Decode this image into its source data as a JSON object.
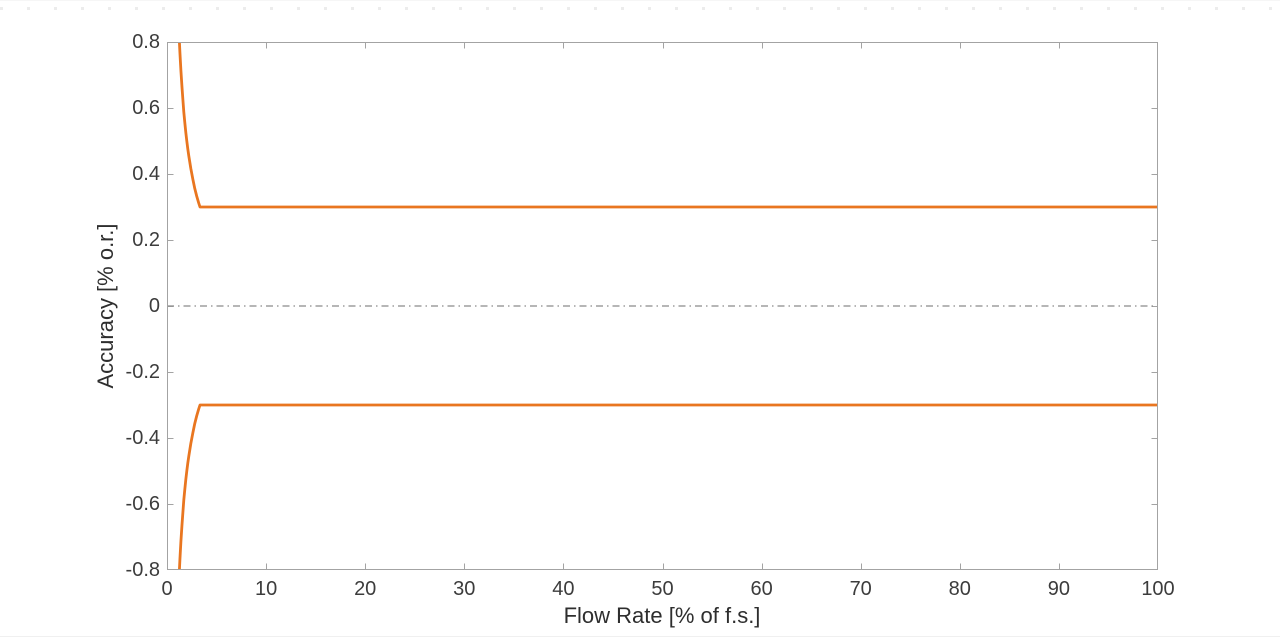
{
  "page": {
    "background_color": "#ffffff"
  },
  "chart_data": {
    "type": "line",
    "title": "",
    "xlabel": "Flow Rate [% of f.s.]",
    "ylabel": "Accuracy [% o.r.]",
    "xlim": [
      0,
      100
    ],
    "ylim": [
      -0.8,
      0.8
    ],
    "x_ticks": [
      0,
      10,
      20,
      30,
      40,
      50,
      60,
      70,
      80,
      90,
      100
    ],
    "x_tick_labels": [
      "0",
      "10",
      "20",
      "30",
      "40",
      "50",
      "60",
      "70",
      "80",
      "90",
      "100"
    ],
    "y_ticks": [
      0.8,
      0.6,
      0.4,
      0.2,
      0,
      -0.2,
      -0.4,
      -0.6,
      -0.8
    ],
    "y_tick_labels": [
      "0.8",
      "0.6",
      "0.4",
      "0.2",
      "0",
      "-0.2",
      "-0.4",
      "-0.6",
      "-0.8"
    ],
    "grid": false,
    "box": true,
    "tick_direction": "in",
    "legend": null,
    "colors": {
      "axis": "#a3a3a3",
      "tick_text": "#3c3c3c",
      "label_text": "#2e2e2e",
      "accuracy_band": "#e97620",
      "zero_line": "#8a8a8a"
    },
    "series": [
      {
        "name": "upper accuracy limit",
        "color": "#e97620",
        "width": 2.8,
        "style": "solid",
        "points": [
          [
            1,
            1.0
          ],
          [
            1.05,
            0.952
          ],
          [
            1.1,
            0.909
          ],
          [
            1.15,
            0.87
          ],
          [
            1.2,
            0.833
          ],
          [
            1.25,
            0.8
          ],
          [
            1.3,
            0.769
          ],
          [
            1.35,
            0.741
          ],
          [
            1.4,
            0.714
          ],
          [
            1.5,
            0.667
          ],
          [
            1.6,
            0.625
          ],
          [
            1.7,
            0.588
          ],
          [
            1.8,
            0.556
          ],
          [
            1.9,
            0.526
          ],
          [
            2,
            0.5
          ],
          [
            2.1,
            0.476
          ],
          [
            2.2,
            0.455
          ],
          [
            2.4,
            0.417
          ],
          [
            2.6,
            0.385
          ],
          [
            2.8,
            0.357
          ],
          [
            3,
            0.333
          ],
          [
            3.2,
            0.312
          ],
          [
            3.33,
            0.3
          ],
          [
            4,
            0.3
          ],
          [
            5,
            0.3
          ],
          [
            10,
            0.3
          ],
          [
            20,
            0.3
          ],
          [
            40,
            0.3
          ],
          [
            60,
            0.3
          ],
          [
            80,
            0.3
          ],
          [
            100,
            0.3
          ]
        ]
      },
      {
        "name": "lower accuracy limit",
        "color": "#e97620",
        "width": 2.8,
        "style": "solid",
        "points": [
          [
            1,
            -1.0
          ],
          [
            1.05,
            -0.952
          ],
          [
            1.1,
            -0.909
          ],
          [
            1.15,
            -0.87
          ],
          [
            1.2,
            -0.833
          ],
          [
            1.25,
            -0.8
          ],
          [
            1.3,
            -0.769
          ],
          [
            1.35,
            -0.741
          ],
          [
            1.4,
            -0.714
          ],
          [
            1.5,
            -0.667
          ],
          [
            1.6,
            -0.625
          ],
          [
            1.7,
            -0.588
          ],
          [
            1.8,
            -0.556
          ],
          [
            1.9,
            -0.526
          ],
          [
            2,
            -0.5
          ],
          [
            2.1,
            -0.476
          ],
          [
            2.2,
            -0.455
          ],
          [
            2.4,
            -0.417
          ],
          [
            2.6,
            -0.385
          ],
          [
            2.8,
            -0.357
          ],
          [
            3,
            -0.333
          ],
          [
            3.2,
            -0.312
          ],
          [
            3.33,
            -0.3
          ],
          [
            4,
            -0.3
          ],
          [
            5,
            -0.3
          ],
          [
            10,
            -0.3
          ],
          [
            20,
            -0.3
          ],
          [
            40,
            -0.3
          ],
          [
            60,
            -0.3
          ],
          [
            80,
            -0.3
          ],
          [
            100,
            -0.3
          ]
        ]
      },
      {
        "name": "zero reference line",
        "color": "#8a8a8a",
        "width": 1.2,
        "style": "dash-dot",
        "points": [
          [
            0,
            0
          ],
          [
            100,
            0
          ]
        ]
      }
    ]
  }
}
